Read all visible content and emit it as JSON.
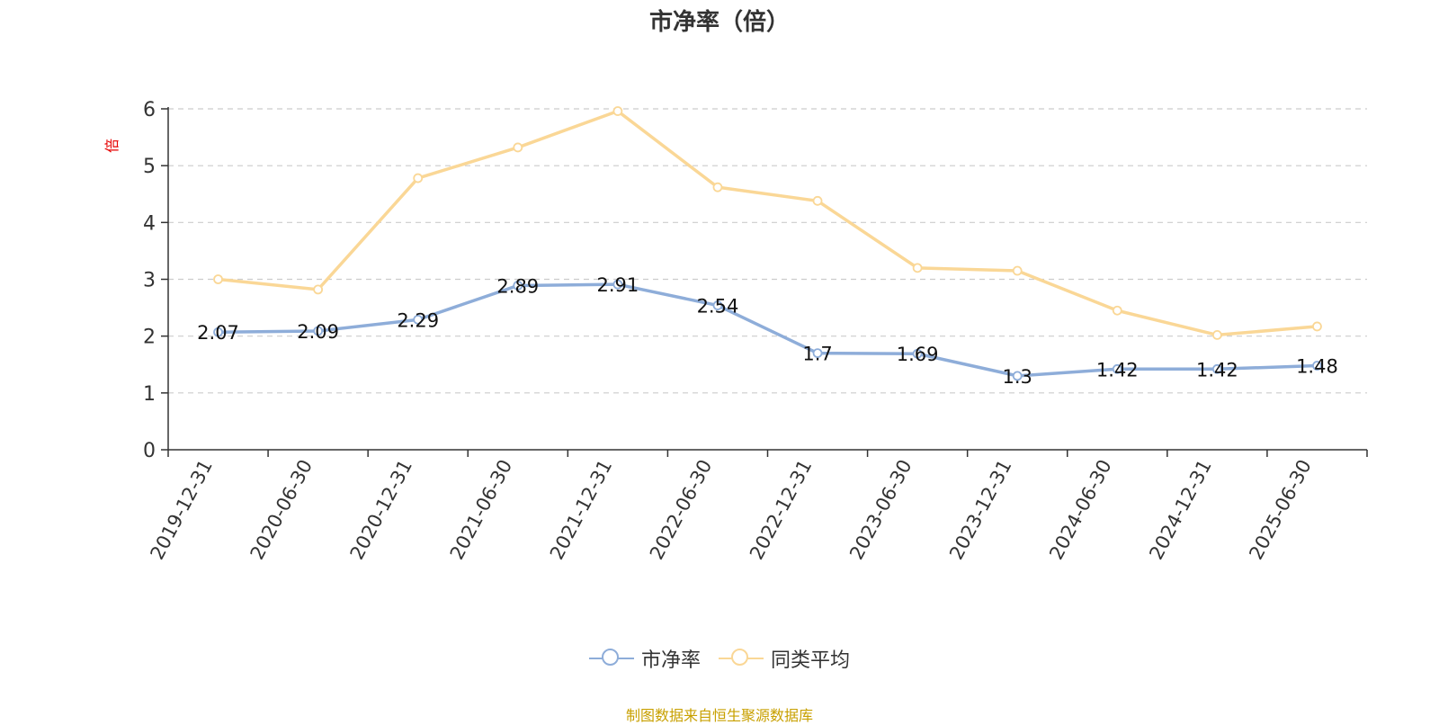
{
  "chart_data": {
    "type": "line",
    "title": "市净率（倍）",
    "ylabel": "倍",
    "xlabel": "",
    "categories": [
      "2019-12-31",
      "2020-06-30",
      "2020-12-31",
      "2021-06-30",
      "2021-12-31",
      "2022-06-30",
      "2022-12-31",
      "2023-06-30",
      "2023-12-31",
      "2024-06-30",
      "2024-12-31",
      "2025-06-30"
    ],
    "ylim": [
      0,
      6
    ],
    "yticks": [
      0,
      1,
      2,
      3,
      4,
      5,
      6
    ],
    "grid": true,
    "legend_position": "bottom",
    "series": [
      {
        "name": "市净率",
        "color": "#8eadd9",
        "values": [
          2.07,
          2.09,
          2.29,
          2.89,
          2.91,
          2.54,
          1.7,
          1.69,
          1.3,
          1.42,
          1.42,
          1.48
        ],
        "data_labels": [
          "2.07",
          "2.09",
          "2.29",
          "2.89",
          "2.91",
          "2.54",
          "1.7",
          "1.69",
          "1.3",
          "1.42",
          "1.42",
          "1.48"
        ]
      },
      {
        "name": "同类平均",
        "color": "#fad796",
        "values": [
          3.0,
          2.82,
          4.78,
          5.32,
          5.96,
          4.62,
          4.38,
          3.2,
          3.15,
          2.45,
          2.02,
          2.17
        ]
      }
    ],
    "source_note": "制图数据来自恒生聚源数据库"
  }
}
